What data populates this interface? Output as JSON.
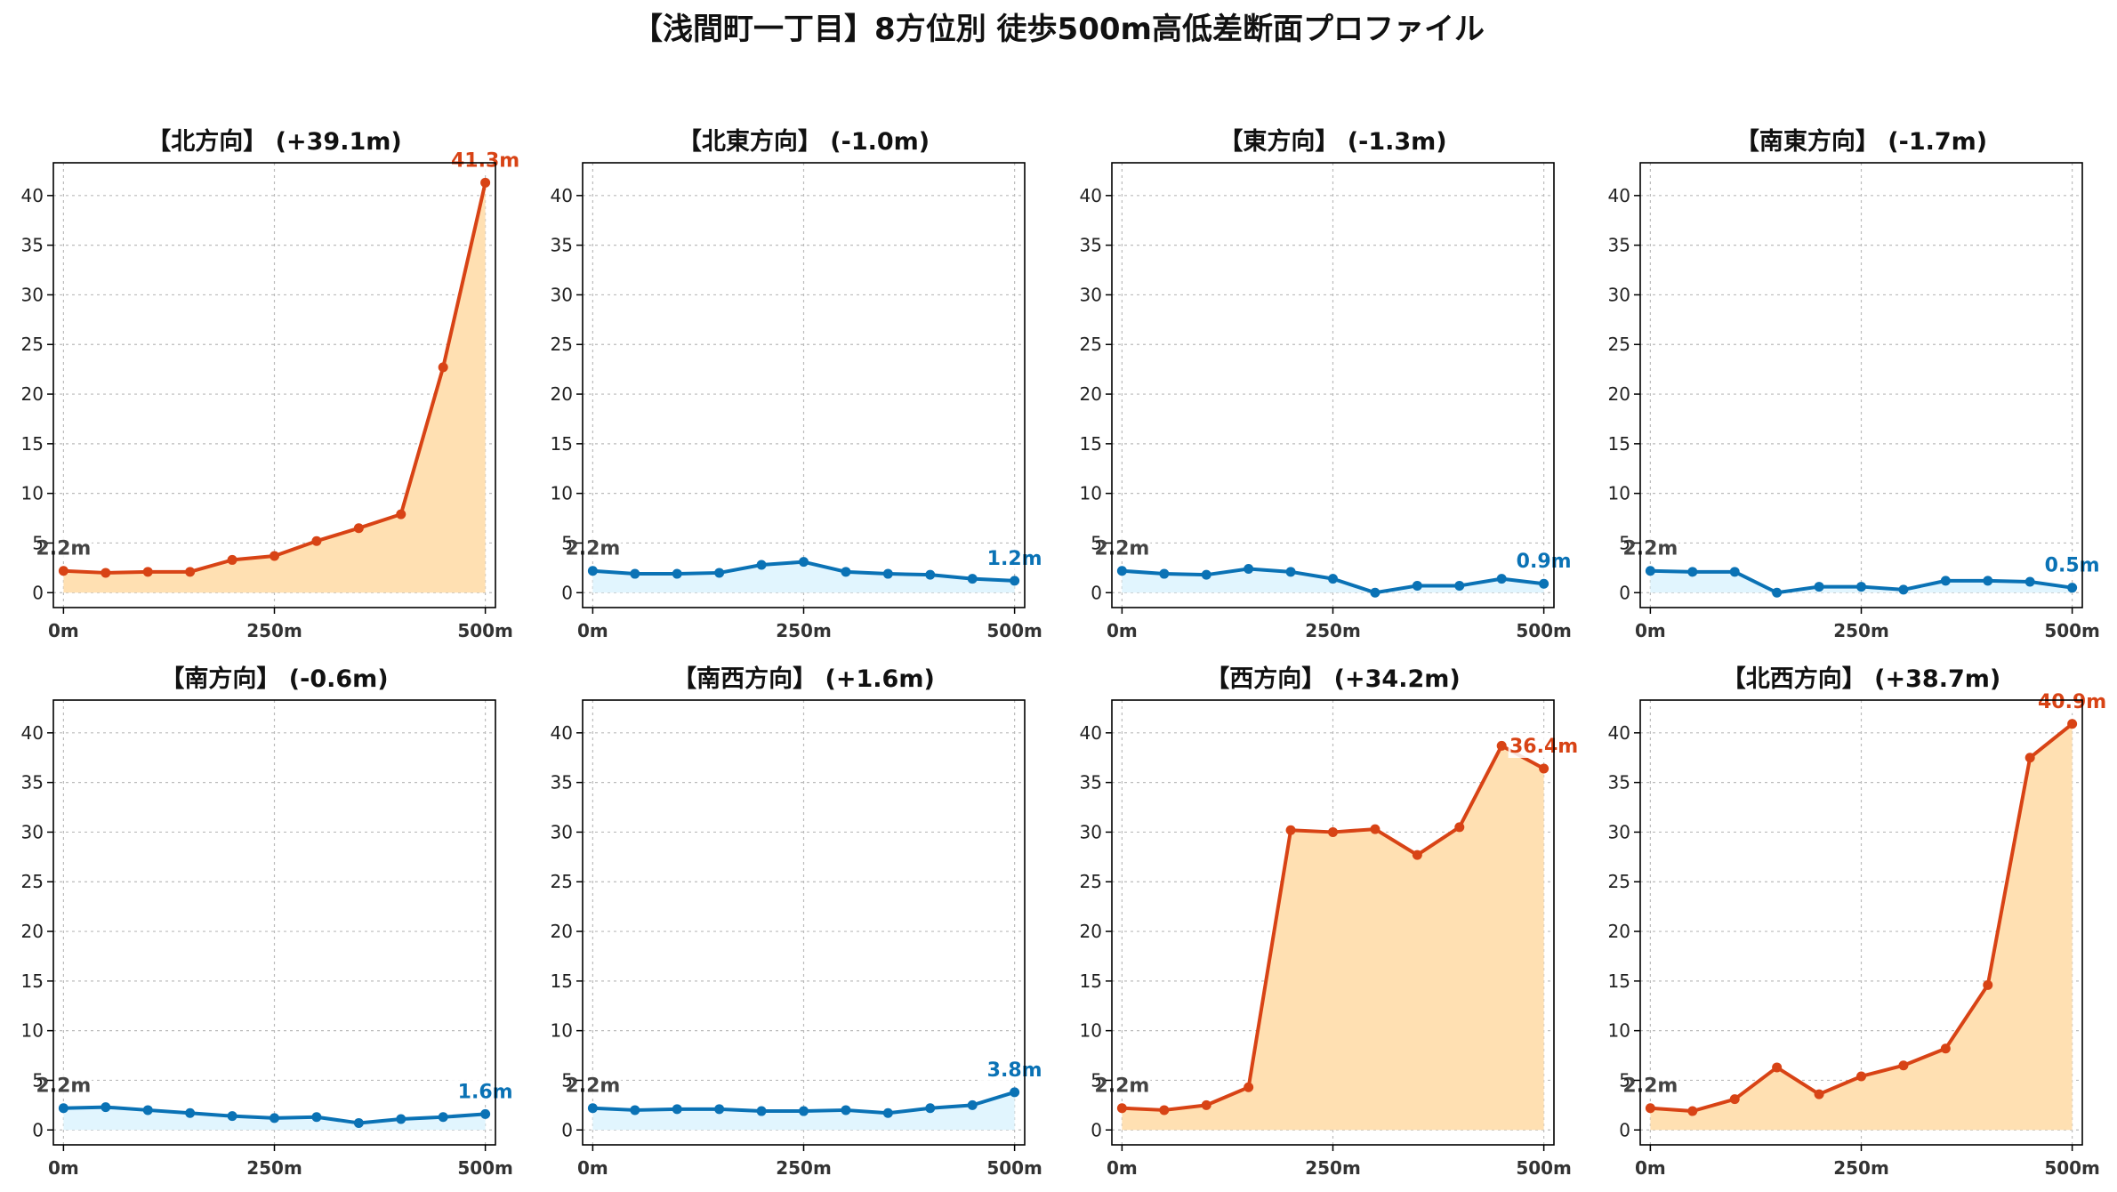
{
  "title": "【浅間町一丁目】8方位別 徒歩500m高低差断面プロファイル",
  "colors": {
    "up_line": "#d84315",
    "up_fill": "#ffe0b2",
    "down_line": "#0a72b5",
    "down_fill": "#e1f5fe",
    "start_label": "#444444",
    "axis": "#000000",
    "grid": "#bbbbbb"
  },
  "chart_data": [
    {
      "type": "area",
      "title": "【北方向】 (+39.1m)",
      "trend": "up",
      "x": [
        0,
        50,
        100,
        150,
        200,
        250,
        300,
        350,
        400,
        450,
        500
      ],
      "series": [
        {
          "values": [
            2.2,
            2.0,
            2.1,
            2.1,
            3.3,
            3.7,
            5.2,
            6.5,
            7.9,
            22.7,
            41.3
          ]
        }
      ],
      "start_label": "2.2m",
      "end_label": "41.3m",
      "xticks": [
        "0m",
        "250m",
        "500m"
      ],
      "yticks": [
        0,
        5,
        10,
        15,
        20,
        25,
        30,
        35,
        40
      ],
      "xlim": [
        -12,
        512
      ],
      "ylim": [
        -1.5,
        43.3
      ],
      "grid": true
    },
    {
      "type": "area",
      "title": "【北東方向】 (-1.0m)",
      "trend": "down",
      "x": [
        0,
        50,
        100,
        150,
        200,
        250,
        300,
        350,
        400,
        450,
        500
      ],
      "series": [
        {
          "values": [
            2.2,
            1.9,
            1.9,
            2.0,
            2.8,
            3.1,
            2.1,
            1.9,
            1.8,
            1.4,
            1.2
          ]
        }
      ],
      "start_label": "2.2m",
      "end_label": "1.2m",
      "xticks": [
        "0m",
        "250m",
        "500m"
      ],
      "yticks": [
        0,
        5,
        10,
        15,
        20,
        25,
        30,
        35,
        40
      ],
      "xlim": [
        -12,
        512
      ],
      "ylim": [
        -1.5,
        43.3
      ],
      "grid": true
    },
    {
      "type": "area",
      "title": "【東方向】 (-1.3m)",
      "trend": "down",
      "x": [
        0,
        50,
        100,
        150,
        200,
        250,
        300,
        350,
        400,
        450,
        500
      ],
      "series": [
        {
          "values": [
            2.2,
            1.9,
            1.8,
            2.4,
            2.1,
            1.4,
            0.0,
            0.7,
            0.7,
            1.4,
            0.9
          ]
        }
      ],
      "start_label": "2.2m",
      "end_label": "0.9m",
      "xticks": [
        "0m",
        "250m",
        "500m"
      ],
      "yticks": [
        0,
        5,
        10,
        15,
        20,
        25,
        30,
        35,
        40
      ],
      "xlim": [
        -12,
        512
      ],
      "ylim": [
        -1.5,
        43.3
      ],
      "grid": true
    },
    {
      "type": "area",
      "title": "【南東方向】 (-1.7m)",
      "trend": "down",
      "x": [
        0,
        50,
        100,
        150,
        200,
        250,
        300,
        350,
        400,
        450,
        500
      ],
      "series": [
        {
          "values": [
            2.2,
            2.1,
            2.1,
            0.0,
            0.6,
            0.6,
            0.3,
            1.2,
            1.2,
            1.1,
            0.5
          ]
        }
      ],
      "start_label": "2.2m",
      "end_label": "0.5m",
      "xticks": [
        "0m",
        "250m",
        "500m"
      ],
      "yticks": [
        0,
        5,
        10,
        15,
        20,
        25,
        30,
        35,
        40
      ],
      "xlim": [
        -12,
        512
      ],
      "ylim": [
        -1.5,
        43.3
      ],
      "grid": true
    },
    {
      "type": "area",
      "title": "【南方向】 (-0.6m)",
      "trend": "down",
      "x": [
        0,
        50,
        100,
        150,
        200,
        250,
        300,
        350,
        400,
        450,
        500
      ],
      "series": [
        {
          "values": [
            2.2,
            2.3,
            2.0,
            1.7,
            1.4,
            1.2,
            1.3,
            0.7,
            1.1,
            1.3,
            1.6
          ]
        }
      ],
      "start_label": "2.2m",
      "end_label": "1.6m",
      "xticks": [
        "0m",
        "250m",
        "500m"
      ],
      "yticks": [
        0,
        5,
        10,
        15,
        20,
        25,
        30,
        35,
        40
      ],
      "xlim": [
        -12,
        512
      ],
      "ylim": [
        -1.5,
        43.3
      ],
      "grid": true
    },
    {
      "type": "area",
      "title": "【南西方向】 (+1.6m)",
      "trend": "down",
      "x": [
        0,
        50,
        100,
        150,
        200,
        250,
        300,
        350,
        400,
        450,
        500
      ],
      "series": [
        {
          "values": [
            2.2,
            2.0,
            2.1,
            2.1,
            1.9,
            1.9,
            2.0,
            1.7,
            2.2,
            2.5,
            3.8
          ]
        }
      ],
      "start_label": "2.2m",
      "end_label": "3.8m",
      "xticks": [
        "0m",
        "250m",
        "500m"
      ],
      "yticks": [
        0,
        5,
        10,
        15,
        20,
        25,
        30,
        35,
        40
      ],
      "xlim": [
        -12,
        512
      ],
      "ylim": [
        -1.5,
        43.3
      ],
      "grid": true
    },
    {
      "type": "area",
      "title": "【西方向】 (+34.2m)",
      "trend": "up",
      "x": [
        0,
        50,
        100,
        150,
        200,
        250,
        300,
        350,
        400,
        450,
        500
      ],
      "series": [
        {
          "values": [
            2.2,
            2.0,
            2.5,
            4.3,
            30.2,
            30.0,
            30.3,
            27.7,
            30.5,
            38.7,
            36.4
          ]
        }
      ],
      "start_label": "2.2m",
      "end_label": "36.4m",
      "xticks": [
        "0m",
        "250m",
        "500m"
      ],
      "yticks": [
        0,
        5,
        10,
        15,
        20,
        25,
        30,
        35,
        40
      ],
      "xlim": [
        -12,
        512
      ],
      "ylim": [
        -1.5,
        43.3
      ],
      "grid": true
    },
    {
      "type": "area",
      "title": "【北西方向】 (+38.7m)",
      "trend": "up",
      "x": [
        0,
        50,
        100,
        150,
        200,
        250,
        300,
        350,
        400,
        450,
        500
      ],
      "series": [
        {
          "values": [
            2.2,
            1.9,
            3.1,
            6.3,
            3.6,
            5.4,
            6.5,
            8.2,
            14.6,
            37.5,
            40.9
          ]
        }
      ],
      "start_label": "2.2m",
      "end_label": "40.9m",
      "xticks": [
        "0m",
        "250m",
        "500m"
      ],
      "yticks": [
        0,
        5,
        10,
        15,
        20,
        25,
        30,
        35,
        40
      ],
      "xlim": [
        -12,
        512
      ],
      "ylim": [
        -1.5,
        43.3
      ],
      "grid": true
    }
  ]
}
